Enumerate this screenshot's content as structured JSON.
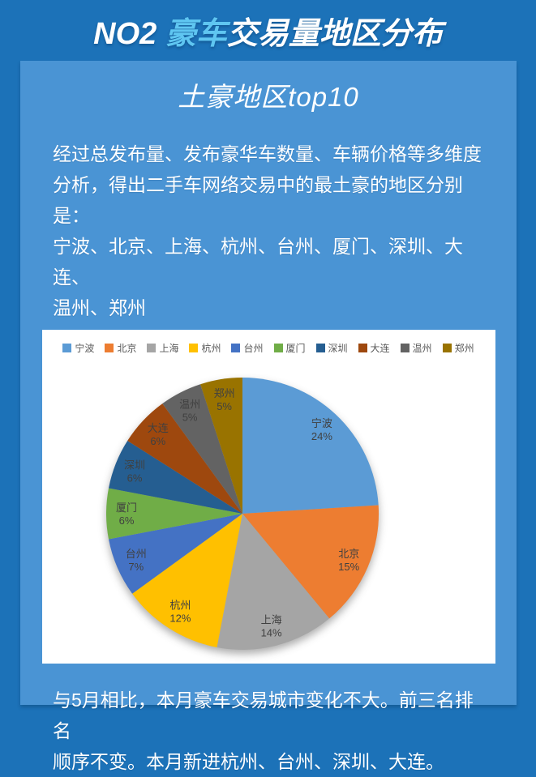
{
  "header": {
    "title_prefix": "NO2 ",
    "title_highlight": "豪车",
    "title_suffix": "交易量地区分布"
  },
  "subtitle": "土豪地区top10",
  "intro_text": "经过总发布量、发布豪华车数量、车辆价格等多维度\n分析，得出二手车网络交易中的最土豪的地区分别是：\n宁波、北京、上海、杭州、台州、厦门、深圳、大连、\n温州、郑州",
  "footer_text": "与5月相比，本月豪车交易城市变化不大。前三名排名\n顺序不变。本月新进杭州、台州、深圳、大连。",
  "colors": {
    "background_dark_blue": "#1C72B8",
    "panel_light_blue": "#4A94D4",
    "header_highlight_cyan": "#5FC6F1",
    "card_white": "#FFFFFF",
    "pie_label_gray": "#404040",
    "legend_text_gray": "#595959"
  },
  "chart_data": {
    "type": "pie",
    "title": "",
    "categories": [
      "宁波",
      "北京",
      "上海",
      "杭州",
      "台州",
      "厦门",
      "深圳",
      "大连",
      "温州",
      "郑州"
    ],
    "values": [
      24,
      15,
      14,
      12,
      7,
      6,
      6,
      6,
      5,
      5
    ],
    "unit": "%",
    "colors": [
      "#5B9BD5",
      "#ED7D31",
      "#A5A5A5",
      "#FFC000",
      "#4472C4",
      "#70AD47",
      "#255E91",
      "#9E480E",
      "#636363",
      "#997300"
    ],
    "legend_position": "top",
    "start_angle_deg": 0,
    "direction": "clockwise",
    "label_style": "category and percent inside slices"
  }
}
